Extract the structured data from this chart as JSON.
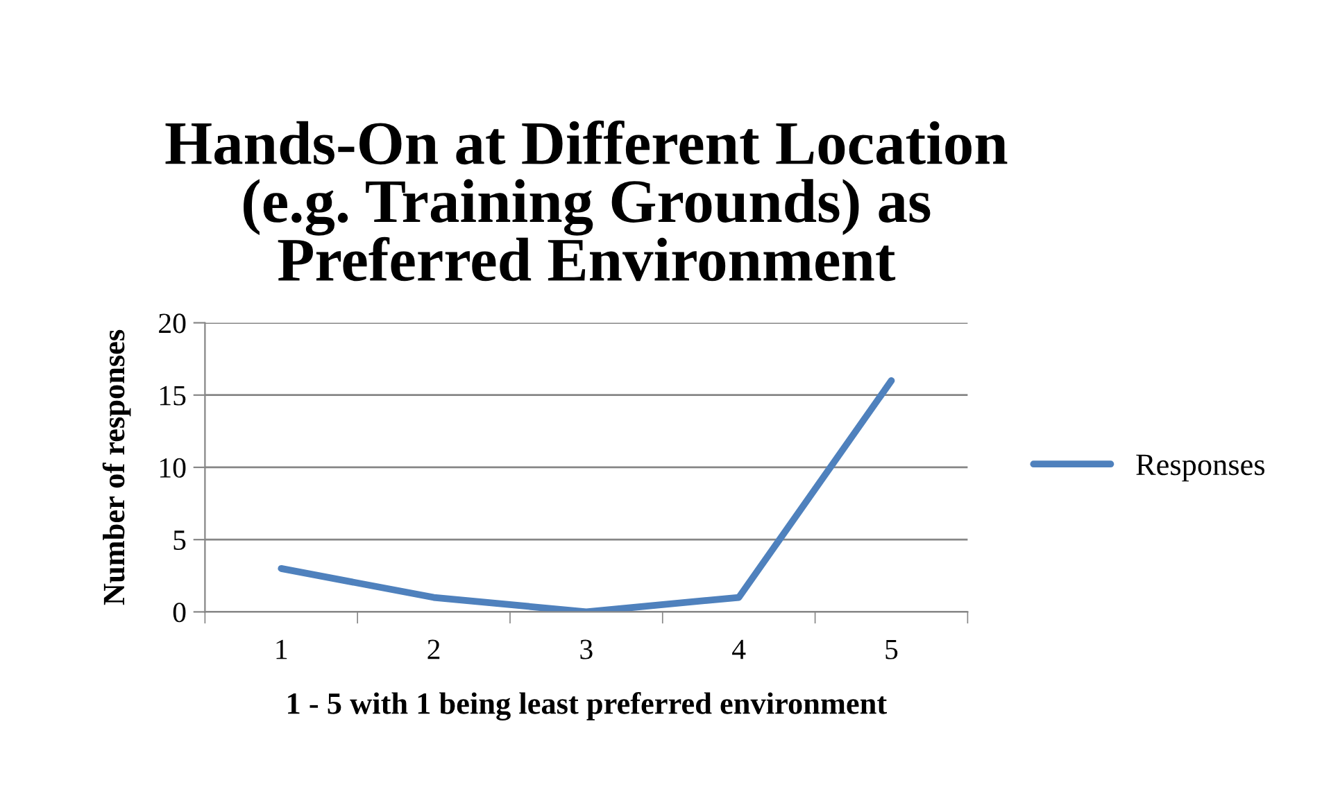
{
  "chart_data": {
    "type": "line",
    "title": "Hands-On at Different Location\n(e.g. Training Grounds) as\nPreferred Environment",
    "xlabel": "1 - 5 with 1 being least preferred environment",
    "ylabel": "Number of responses",
    "categories": [
      "1",
      "2",
      "3",
      "4",
      "5"
    ],
    "series": [
      {
        "name": "Responses",
        "color": "#4f81bd",
        "values": [
          3,
          1,
          0,
          1,
          16
        ]
      }
    ],
    "ylim": [
      0,
      20
    ],
    "yticks": [
      0,
      5,
      10,
      15,
      20
    ],
    "grid": "y",
    "legend": "right",
    "marker": "none",
    "line_style": "solid"
  }
}
